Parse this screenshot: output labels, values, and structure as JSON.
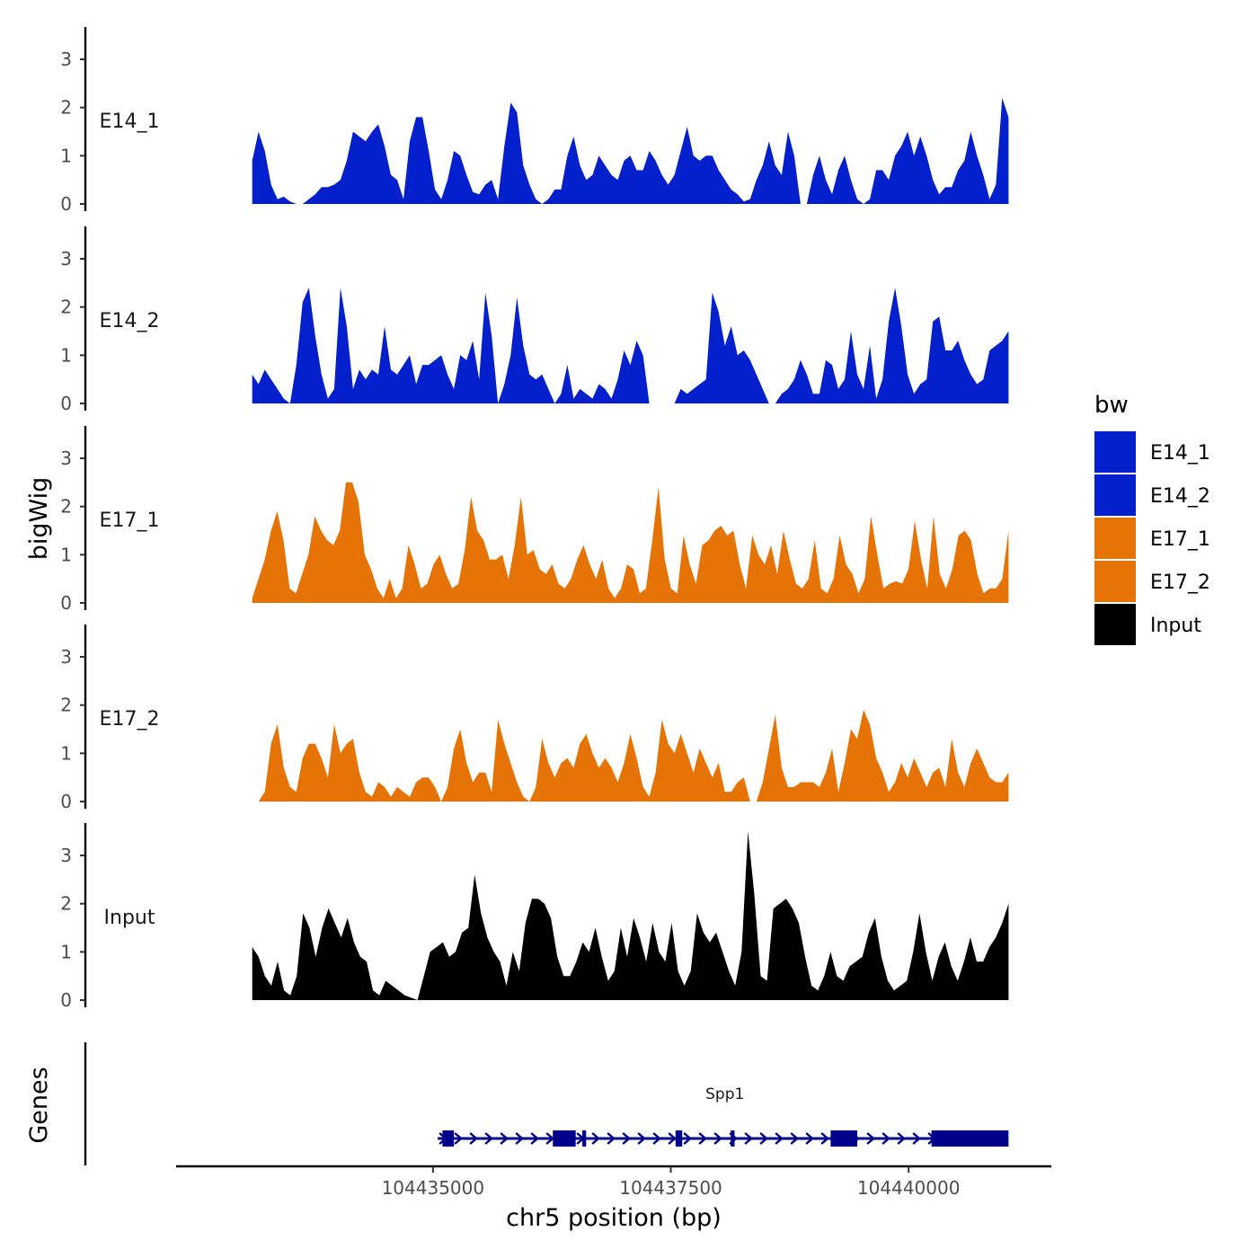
{
  "chart_data": {
    "type": "area",
    "title": "",
    "xlabel": "chr5 position (bp)",
    "ylabel": "bigWig",
    "gene_panel_label": "Genes",
    "xlim": [
      104432300,
      104441500
    ],
    "ylim": [
      0,
      3.6
    ],
    "x_ticks": [
      104435000,
      104437500,
      104440000
    ],
    "x_tick_labels": [
      "104435000",
      "104437500",
      "104440000"
    ],
    "y_ticks": [
      0,
      1,
      2,
      3
    ],
    "y_tick_labels": [
      "0",
      "1",
      "2",
      "3"
    ],
    "data_x_range": [
      104433100,
      104441050
    ],
    "legend": {
      "title": "bw",
      "position": "right",
      "entries": [
        {
          "label": "E14_1",
          "color": "#0420CC"
        },
        {
          "label": "E14_2",
          "color": "#0420CC"
        },
        {
          "label": "E17_1",
          "color": "#E67306"
        },
        {
          "label": "E17_2",
          "color": "#E67306"
        },
        {
          "label": "Input",
          "color": "#000000"
        }
      ]
    },
    "series": [
      {
        "name": "E14_1",
        "label": "E14_1",
        "color": "#0420CC",
        "values": [
          0.9,
          1.5,
          1.1,
          0.4,
          0.1,
          0.15,
          0.05,
          0,
          0,
          0.1,
          0.2,
          0.35,
          0.35,
          0.4,
          0.5,
          0.9,
          1.5,
          1.4,
          1.3,
          1.5,
          1.65,
          1.2,
          0.6,
          0.5,
          0.1,
          1.3,
          1.8,
          1.8,
          1.1,
          0.3,
          0.1,
          0.5,
          1.1,
          1.0,
          0.6,
          0.25,
          0.2,
          0.4,
          0.5,
          0.1,
          1.2,
          2.1,
          1.9,
          0.8,
          0.4,
          0.1,
          0,
          0.1,
          0.3,
          0.3,
          1.0,
          1.4,
          0.8,
          0.5,
          0.6,
          1.0,
          0.8,
          0.6,
          0.5,
          0.9,
          1.0,
          0.7,
          0.7,
          1.1,
          0.9,
          0.6,
          0.4,
          0.6,
          1.1,
          1.6,
          1.0,
          0.9,
          1.0,
          1.0,
          0.7,
          0.5,
          0.3,
          0.2,
          0.05,
          0.1,
          0.5,
          0.8,
          1.3,
          0.8,
          0.6,
          1.5,
          1.0,
          0,
          0,
          0.6,
          1.0,
          0.5,
          0.2,
          0.7,
          1.0,
          0.5,
          0.1,
          0,
          0.1,
          0.7,
          0.7,
          0.5,
          1.0,
          1.2,
          1.5,
          1.0,
          1.4,
          1.0,
          0.5,
          0.2,
          0.35,
          0.35,
          0.7,
          0.9,
          1.5,
          1.0,
          0.6,
          0.1,
          0.4,
          2.2,
          1.8
        ]
      },
      {
        "name": "E14_2",
        "label": "E14_2",
        "color": "#0420CC",
        "values": [
          0.6,
          0.4,
          0.7,
          0.5,
          0.3,
          0.1,
          0,
          0.8,
          2.1,
          2.4,
          1.4,
          0.6,
          0.1,
          0.3,
          2.4,
          1.6,
          0.3,
          0.7,
          0.5,
          0.7,
          0.6,
          1.6,
          0.7,
          0.6,
          0.8,
          1.0,
          0.4,
          0.8,
          0.8,
          0.9,
          1.0,
          0.6,
          0.3,
          1.0,
          0.9,
          1.3,
          0.5,
          2.3,
          1.4,
          0,
          0.4,
          1.0,
          2.2,
          1.2,
          0.6,
          0.5,
          0.6,
          0.3,
          0,
          0.2,
          0.8,
          0.1,
          0.3,
          0.2,
          0.1,
          0.4,
          0.3,
          0.1,
          0.5,
          1.1,
          0.8,
          1.3,
          1.0,
          0,
          0,
          0,
          0,
          0,
          0.3,
          0.2,
          0.3,
          0.4,
          0.5,
          2.3,
          1.9,
          1.2,
          1.6,
          1.0,
          1.1,
          0.9,
          0.6,
          0.3,
          0,
          0,
          0.2,
          0.3,
          0.5,
          0.9,
          0.6,
          0.2,
          0.2,
          0.9,
          0.8,
          0.3,
          0.5,
          1.5,
          0.6,
          0.3,
          1.2,
          0.1,
          0.5,
          1.7,
          2.4,
          1.6,
          0.6,
          0.2,
          0.4,
          0.5,
          1.7,
          1.8,
          1.1,
          1.1,
          1.3,
          0.9,
          0.6,
          0.4,
          0.5,
          1.1,
          1.2,
          1.3,
          1.5
        ]
      },
      {
        "name": "E17_1",
        "label": "E17_1",
        "color": "#E67306",
        "values": [
          0.1,
          0.5,
          0.9,
          1.5,
          1.9,
          1.3,
          0.3,
          0.2,
          0.6,
          1.0,
          1.8,
          1.5,
          1.3,
          1.2,
          1.5,
          2.5,
          2.5,
          2.1,
          1.0,
          0.7,
          0.3,
          0.1,
          0.5,
          0.1,
          0.3,
          1.2,
          0.8,
          0.3,
          0.4,
          0.8,
          1.0,
          0.6,
          0.3,
          0.4,
          1.1,
          2.2,
          1.5,
          1.3,
          0.9,
          0.9,
          1.0,
          0.5,
          1.2,
          2.2,
          1.0,
          1.1,
          0.7,
          0.6,
          0.8,
          0.4,
          0.3,
          0.5,
          0.9,
          1.2,
          0.8,
          0.5,
          0.9,
          0.3,
          0.1,
          0.3,
          0.8,
          0.7,
          0.2,
          0.3,
          1.3,
          2.4,
          0.9,
          0.3,
          0.2,
          1.4,
          0.8,
          0.4,
          1.2,
          1.3,
          1.5,
          1.6,
          1.4,
          1.5,
          0.8,
          0.3,
          1.4,
          1.0,
          0.8,
          1.2,
          0.6,
          1.5,
          0.9,
          0.4,
          0.3,
          0.5,
          1.3,
          0.3,
          0.2,
          0.5,
          1.4,
          0.8,
          0.6,
          0.2,
          0.5,
          1.8,
          1.0,
          0.3,
          0.4,
          0.45,
          0.4,
          0.7,
          1.7,
          0.9,
          0.3,
          1.8,
          0.6,
          0.3,
          0.7,
          1.4,
          1.5,
          1.3,
          0.6,
          0.2,
          0.3,
          0.3,
          0.5,
          1.5
        ]
      },
      {
        "name": "E17_2",
        "label": "E17_2",
        "color": "#E67306",
        "values": [
          0,
          0,
          0.2,
          1.2,
          1.6,
          0.7,
          0.3,
          0.2,
          0.9,
          1.2,
          1.2,
          0.9,
          0.5,
          1.6,
          1.0,
          1.2,
          1.3,
          0.6,
          0.2,
          0.1,
          0.4,
          0.3,
          0.1,
          0.3,
          0.2,
          0.1,
          0.4,
          0.5,
          0.5,
          0.3,
          0,
          0.3,
          1.1,
          1.5,
          0.8,
          0.4,
          0.6,
          0.6,
          0.2,
          1.7,
          1.2,
          0.8,
          0.4,
          0.1,
          0,
          0.3,
          1.3,
          0.8,
          0.5,
          0.8,
          0.9,
          0.7,
          1.2,
          1.4,
          1.0,
          0.7,
          0.9,
          0.7,
          0.4,
          0.8,
          1.4,
          0.9,
          0.3,
          0.1,
          0.6,
          1.7,
          1.2,
          1.0,
          1.4,
          1.0,
          0.6,
          1.1,
          0.8,
          0.5,
          0.8,
          0.2,
          0.2,
          0.4,
          0.5,
          0,
          0,
          0.4,
          1.1,
          1.8,
          0.7,
          0.3,
          0.3,
          0.4,
          0.4,
          0.4,
          0.3,
          0.6,
          1.1,
          0.2,
          0.8,
          1.5,
          1.3,
          1.9,
          1.6,
          0.9,
          0.6,
          0.2,
          0.4,
          0.8,
          0.5,
          0.9,
          0.6,
          0.3,
          0.6,
          0.7,
          0.3,
          1.3,
          0.6,
          0.3,
          0.8,
          1.1,
          0.8,
          0.5,
          0.4,
          0.4,
          0.6
        ]
      },
      {
        "name": "Input",
        "label": "Input",
        "color": "#000000",
        "values": [
          1.1,
          0.9,
          0.5,
          0.3,
          0.8,
          0.2,
          0.1,
          0.5,
          1.8,
          1.5,
          0.9,
          1.5,
          1.9,
          1.6,
          1.3,
          1.7,
          1.2,
          0.9,
          0.8,
          0.2,
          0.1,
          0.4,
          0.3,
          0.2,
          0.1,
          0.05,
          0,
          0.5,
          1.0,
          1.1,
          1.2,
          0.9,
          1.0,
          1.4,
          1.5,
          2.6,
          1.8,
          1.3,
          1.0,
          0.8,
          0.3,
          1.0,
          0.6,
          1.6,
          2.1,
          2.1,
          2.0,
          1.7,
          0.9,
          0.5,
          0.5,
          0.8,
          1.2,
          1.0,
          1.5,
          0.9,
          0.4,
          0.6,
          1.5,
          0.9,
          1.7,
          1.3,
          0.8,
          1.6,
          1.0,
          0.8,
          1.6,
          0.6,
          0.3,
          0.6,
          1.8,
          1.4,
          1.2,
          1.4,
          1.0,
          0.6,
          0.3,
          1.0,
          3.5,
          2.2,
          0.5,
          0.4,
          1.9,
          2.0,
          2.1,
          1.9,
          1.6,
          0.9,
          0.3,
          0.2,
          0.5,
          1.0,
          0.5,
          0.4,
          0.7,
          0.8,
          0.9,
          1.4,
          1.7,
          0.9,
          0.4,
          0.2,
          0.3,
          0.4,
          1.0,
          1.8,
          1.0,
          0.4,
          0.9,
          1.2,
          0.7,
          0.4,
          0.8,
          1.3,
          0.8,
          0.8,
          1.1,
          1.3,
          1.6,
          2.0
        ]
      }
    ],
    "gene": {
      "name": "Spp1",
      "strand": "+",
      "start": 104435050,
      "end": 104441050,
      "exons": [
        [
          104435100,
          104435220
        ],
        [
          104436260,
          104436500
        ],
        [
          104436570,
          104436610
        ],
        [
          104437550,
          104437620
        ],
        [
          104438130,
          104438170
        ],
        [
          104439180,
          104439460
        ],
        [
          104440240,
          104441050
        ]
      ],
      "color": "#00008B"
    }
  }
}
